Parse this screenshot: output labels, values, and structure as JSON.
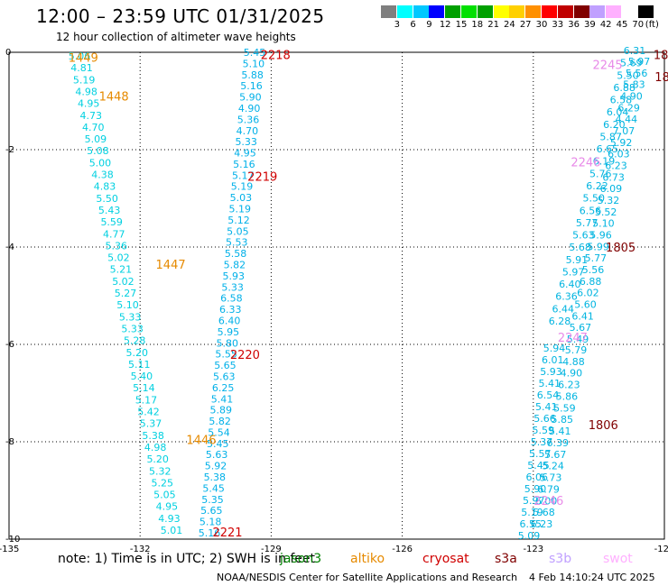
{
  "title": "12:00 – 23:59 UTC 01/31/2025",
  "subtitle": "12 hour collection of altimeter wave heights",
  "color_scale": {
    "labels": [
      "3",
      "6",
      "9",
      "12",
      "15",
      "18",
      "21",
      "24",
      "27",
      "30",
      "33",
      "36",
      "39",
      "42",
      "45",
      "70"
    ],
    "unit": "(ft)",
    "colors": [
      "#7f7f7f",
      "#00ffff",
      "#00c8ff",
      "#0000ff",
      "#00a000",
      "#00e000",
      "#00a000",
      "#ffff00",
      "#ffd000",
      "#ff9000",
      "#ff0000",
      "#c00000",
      "#800000",
      "#c0a0ff",
      "#ffb0ff",
      "#ffffff",
      "#000000"
    ]
  },
  "axes": {
    "x_ticks": [
      "-135",
      "-132",
      "-129",
      "-126",
      "-123",
      "-120"
    ],
    "y_ticks": [
      "0",
      "-2",
      "-4",
      "-6",
      "-8",
      "-10"
    ]
  },
  "pass_labels": [
    {
      "text": "1449",
      "lon": -133.3,
      "lat": -0.1,
      "color": "#e68a00"
    },
    {
      "text": "1448",
      "lon": -132.6,
      "lat": -0.9,
      "color": "#e68a00"
    },
    {
      "text": "1447",
      "lon": -131.3,
      "lat": -4.35,
      "color": "#e68a00"
    },
    {
      "text": "1446",
      "lon": -130.6,
      "lat": -7.95,
      "color": "#e68a00"
    },
    {
      "text": "2218",
      "lon": -128.9,
      "lat": -0.05,
      "color": "#d00000"
    },
    {
      "text": "2219",
      "lon": -129.2,
      "lat": -2.55,
      "color": "#d00000"
    },
    {
      "text": "2220",
      "lon": -129.6,
      "lat": -6.2,
      "color": "#d00000"
    },
    {
      "text": "2221",
      "lon": -130.0,
      "lat": -9.85,
      "color": "#d00000"
    },
    {
      "text": "1805",
      "lon": -121.0,
      "lat": -4.0,
      "color": "#800000"
    },
    {
      "text": "1806",
      "lon": -121.4,
      "lat": -7.65,
      "color": "#800000"
    },
    {
      "text": "18",
      "lon": -120.08,
      "lat": -0.05,
      "color": "#800000"
    },
    {
      "text": "18",
      "lon": -120.05,
      "lat": -0.5,
      "color": "#800000"
    },
    {
      "text": "2245",
      "lon": -121.3,
      "lat": -0.25,
      "color": "#e88ae8"
    },
    {
      "text": "2246",
      "lon": -121.8,
      "lat": -2.25,
      "color": "#e88ae8"
    },
    {
      "text": "2247",
      "lon": -122.1,
      "lat": -5.85,
      "color": "#e88ae8"
    },
    {
      "text": "2246",
      "lon": -122.65,
      "lat": -9.2,
      "color": "#e88ae8"
    }
  ],
  "track_values": {
    "pass_1449_1446": [
      "5.06",
      "4.81",
      "5.19",
      "4.98",
      "4.95",
      "4.73",
      "4.70",
      "5.09",
      "5.08",
      "5.00",
      "4.38",
      "4.83",
      "5.50",
      "5.43",
      "5.59",
      "4.77",
      "5.36",
      "5.02",
      "5.21",
      "5.02",
      "5.27",
      "5.10",
      "5.33",
      "5.33",
      "5.28",
      "5.20",
      "5.11",
      "5.40",
      "5.14",
      "5.17",
      "5.42",
      "5.37",
      "5.38",
      "4.98",
      "5.20",
      "5.32",
      "5.25",
      "5.05",
      "4.95",
      "4.93",
      "5.01"
    ],
    "pass_2218_2221": [
      "5.45",
      "5.10",
      "5.88",
      "5.16",
      "5.90",
      "4.90",
      "5.36",
      "4.70",
      "5.33",
      "4.95",
      "5.16",
      "5.17",
      "5.19",
      "5.03",
      "5.19",
      "5.12",
      "5.05",
      "5.53",
      "5.58",
      "5.82",
      "5.93",
      "5.33",
      "6.58",
      "6.33",
      "6.40",
      "5.95",
      "5.80",
      "5.55",
      "5.65",
      "5.63",
      "6.25",
      "5.41",
      "5.89",
      "5.82",
      "5.54",
      "5.45",
      "5.63",
      "5.92",
      "5.38",
      "5.45",
      "5.35",
      "5.65",
      "5.18",
      "5.16"
    ],
    "pass_1805_1806_a": [
      "6.31",
      "5.69",
      "5.50",
      "6.88",
      "6.58",
      "6.04",
      "6.20",
      "5.87",
      "6.65",
      "6.19",
      "5.76",
      "6.22",
      "5.50",
      "6.56",
      "5.77",
      "5.63",
      "5.68",
      "5.91",
      "5.97",
      "6.40",
      "6.36",
      "6.44",
      "6.28"
    ],
    "pass_1805_1806_b": [
      "5.97",
      "5.56",
      "5.83",
      "4.90",
      "6.29",
      "4.44",
      "7.07",
      "5.92",
      "6.03",
      "6.23",
      "6.73",
      "6.09",
      "5.32",
      "5.52",
      "5.10",
      "5.96",
      "5.99",
      "5.77",
      "5.56",
      "6.88",
      "6.02",
      "5.60",
      "6.41",
      "5.67",
      "5.49"
    ],
    "pass_1806_lower": [
      "5.94",
      "6.01",
      "5.93",
      "5.41",
      "6.54",
      "5.41",
      "5.66",
      "5.59",
      "5.37",
      "5.57",
      "5.45",
      "6.06",
      "5.90",
      "5.97",
      "5.19",
      "6.55",
      "5.09"
    ],
    "pass_1806_lower_b": [
      "5.79",
      "4.88",
      "4.90",
      "6.23",
      "5.86",
      "5.59",
      "5.85",
      "5.41",
      "6.39",
      "5.67",
      "5.24",
      "5.73",
      "6.79",
      "6.00",
      "5.68",
      "6.23"
    ]
  },
  "note": "note:  1) Time is in UTC; 2) SWH is in feet",
  "satellites": [
    {
      "name": "jason3",
      "color": "#008000"
    },
    {
      "name": "altiko",
      "color": "#e68a00"
    },
    {
      "name": "cryosat",
      "color": "#d00000"
    },
    {
      "name": "s3a",
      "color": "#800000"
    },
    {
      "name": "s3b",
      "color": "#c0a0ff"
    },
    {
      "name": "swot",
      "color": "#ffb0ff"
    }
  ],
  "credit": "NOAA/NESDIS Center for Satellite Applications and Research",
  "timestamp": "4 Feb 14:10:24 UTC 2025"
}
